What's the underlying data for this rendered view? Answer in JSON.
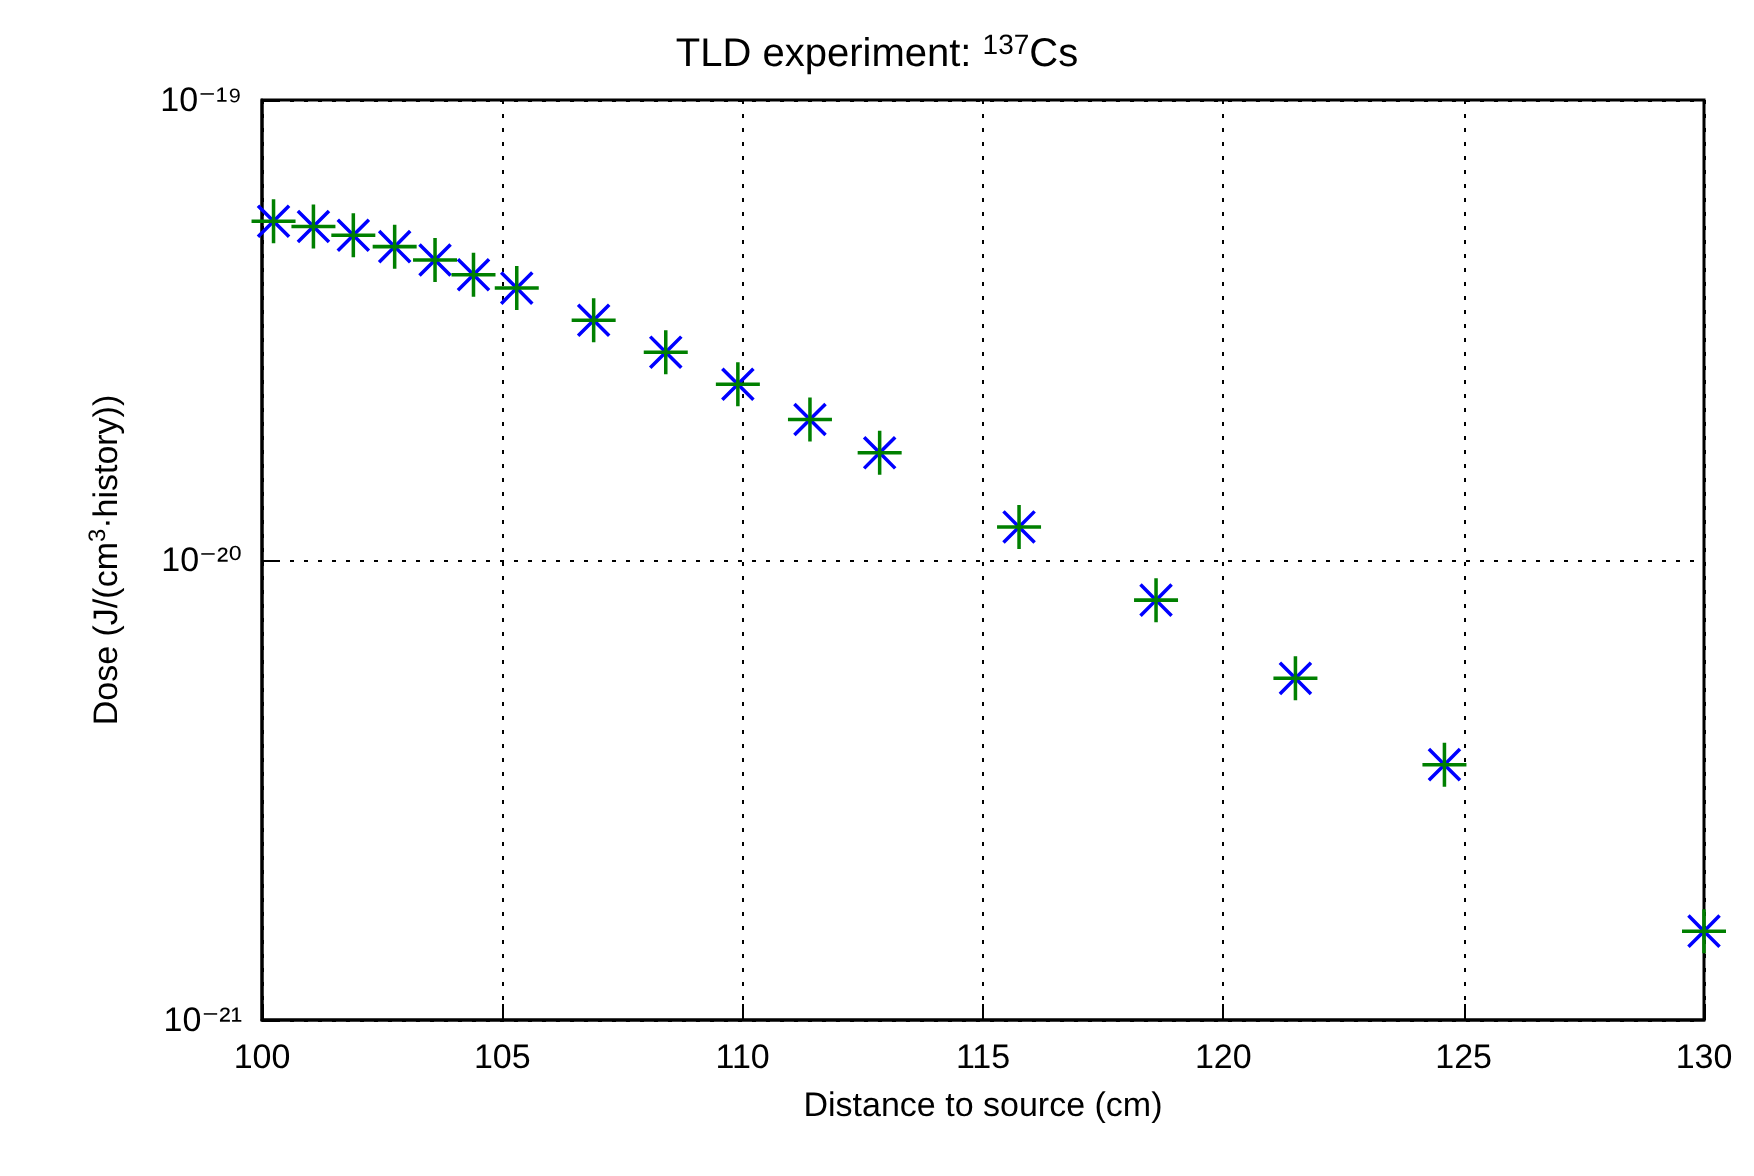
{
  "chart_data": {
    "type": "scatter",
    "title": "TLD experiment: $^{137}$Cs",
    "xlabel": "Distance to source (cm)",
    "ylabel": "Dose (J/(cm$^{3}$·history))",
    "x": [
      100.24,
      101.07,
      101.9,
      102.76,
      103.6,
      104.4,
      105.3,
      106.9,
      108.4,
      109.9,
      111.4,
      112.85,
      115.75,
      118.6,
      121.5,
      124.6,
      130
    ],
    "series": [
      {
        "color": "#0000ff",
        "values": [
          5.45e-20,
          5.31e-20,
          5.08e-20,
          4.8e-20,
          4.49e-20,
          4.17e-20,
          3.9e-20,
          3.32e-20,
          2.83e-20,
          2.41e-20,
          2.02e-20,
          1.71e-20,
          1.18e-20,
          8.18e-21,
          5.53e-21,
          3.59e-21,
          1.56e-21
        ]
      },
      {
        "color": "#008000",
        "values": [
          5.45e-20,
          5.31e-20,
          5.08e-20,
          4.8e-20,
          4.49e-20,
          4.17e-20,
          3.9e-20,
          3.32e-20,
          2.83e-20,
          2.41e-20,
          2.02e-20,
          1.71e-20,
          1.18e-20,
          8.18e-21,
          5.53e-21,
          3.59e-21,
          1.56e-21
        ]
      }
    ],
    "xlim": [
      100,
      130
    ],
    "xticks": [
      100,
      105,
      110,
      115,
      120,
      125,
      130
    ],
    "ylim": [
      1e-21,
      1e-19
    ],
    "yticks": [
      {
        "value": 1e-21,
        "label": "10⁻²¹"
      },
      {
        "value": 1e-20,
        "label": "10⁻²⁰"
      },
      {
        "value": 1e-19,
        "label": "10⁻¹⁹"
      }
    ],
    "log": "y",
    "grid": true,
    "marker": "cross"
  }
}
